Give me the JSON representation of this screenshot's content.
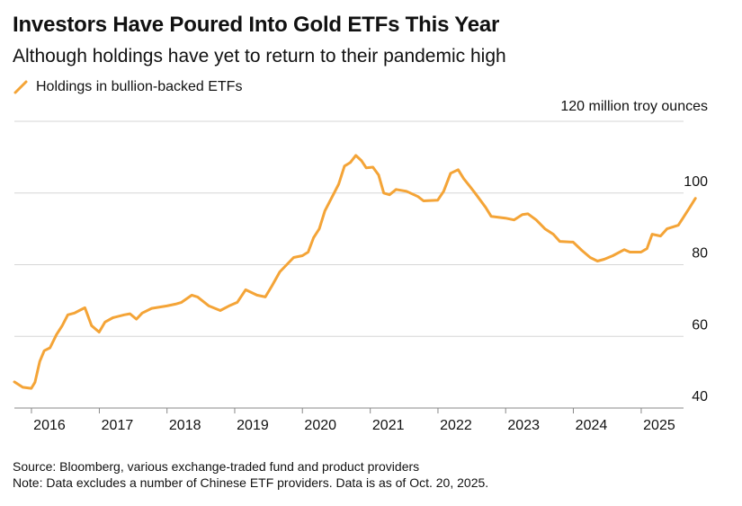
{
  "header": {
    "title": "Investors Have Poured Into Gold ETFs This Year",
    "subtitle": "Although holdings have yet to return to their pandemic high"
  },
  "legend": {
    "label": "Holdings in bullion-backed ETFs",
    "color": "#f4a437"
  },
  "footer": {
    "source": "Source: Bloomberg, various exchange-traded fund and product providers",
    "note": "Note: Data excludes a number of Chinese ETF providers. Data is as of Oct. 20, 2025."
  },
  "chart_data": {
    "type": "line",
    "title": "Investors Have Poured Into Gold ETFs This Year",
    "subtitle": "Although holdings have yet to return to their pandemic high",
    "xlabel": "",
    "ylabel": "",
    "unit_label": "120 million troy ounces",
    "xlim": [
      "2015-10-01",
      "2025-12-31"
    ],
    "ylim": [
      40,
      120
    ],
    "x_ticks": [
      {
        "label": "2016",
        "date": "2016-01-01"
      },
      {
        "label": "2017",
        "date": "2017-01-01"
      },
      {
        "label": "2018",
        "date": "2018-01-01"
      },
      {
        "label": "2019",
        "date": "2019-01-01"
      },
      {
        "label": "2020",
        "date": "2020-01-01"
      },
      {
        "label": "2021",
        "date": "2021-01-01"
      },
      {
        "label": "2022",
        "date": "2022-01-01"
      },
      {
        "label": "2023",
        "date": "2023-01-01"
      },
      {
        "label": "2024",
        "date": "2024-01-01"
      },
      {
        "label": "2025",
        "date": "2025-01-01"
      }
    ],
    "y_ticks": [
      {
        "value": 40,
        "label": "40"
      },
      {
        "value": 60,
        "label": "60"
      },
      {
        "value": 80,
        "label": "80"
      },
      {
        "value": 100,
        "label": "100"
      },
      {
        "value": 120,
        "label": "120 million troy ounces"
      }
    ],
    "grid": "horizontal",
    "legend_position": "top-left",
    "color": "#f4a437",
    "series": [
      {
        "name": "Holdings in bullion-backed ETFs",
        "points": [
          [
            "2015-10-01",
            47.3
          ],
          [
            "2015-11-15",
            45.8
          ],
          [
            "2015-12-31",
            45.5
          ],
          [
            "2016-01-20",
            47.2
          ],
          [
            "2016-02-15",
            53.0
          ],
          [
            "2016-03-10",
            56.0
          ],
          [
            "2016-04-10",
            56.8
          ],
          [
            "2016-05-15",
            60.5
          ],
          [
            "2016-06-15",
            63.0
          ],
          [
            "2016-07-15",
            66.0
          ],
          [
            "2016-08-20",
            66.5
          ],
          [
            "2016-09-15",
            67.2
          ],
          [
            "2016-10-15",
            68.0
          ],
          [
            "2016-11-20",
            63.0
          ],
          [
            "2016-12-31",
            61.2
          ],
          [
            "2017-02-01",
            64.0
          ],
          [
            "2017-03-15",
            65.2
          ],
          [
            "2017-05-15",
            66.0
          ],
          [
            "2017-06-15",
            66.3
          ],
          [
            "2017-07-20",
            64.8
          ],
          [
            "2017-08-20",
            66.5
          ],
          [
            "2017-10-10",
            67.8
          ],
          [
            "2017-12-31",
            68.5
          ],
          [
            "2018-02-15",
            69.0
          ],
          [
            "2018-03-20",
            69.5
          ],
          [
            "2018-05-15",
            71.5
          ],
          [
            "2018-06-15",
            71.0
          ],
          [
            "2018-08-15",
            68.5
          ],
          [
            "2018-10-15",
            67.2
          ],
          [
            "2018-12-01",
            68.5
          ],
          [
            "2019-01-15",
            69.5
          ],
          [
            "2019-03-01",
            73.0
          ],
          [
            "2019-05-01",
            71.5
          ],
          [
            "2019-06-15",
            71.0
          ],
          [
            "2019-07-20",
            74.0
          ],
          [
            "2019-09-01",
            78.0
          ],
          [
            "2019-11-15",
            82.0
          ],
          [
            "2020-01-01",
            82.5
          ],
          [
            "2020-02-01",
            83.5
          ],
          [
            "2020-03-01",
            87.5
          ],
          [
            "2020-04-01",
            90.0
          ],
          [
            "2020-05-01",
            95.0
          ],
          [
            "2020-06-15",
            99.5
          ],
          [
            "2020-07-15",
            102.5
          ],
          [
            "2020-08-15",
            107.5
          ],
          [
            "2020-09-15",
            108.5
          ],
          [
            "2020-10-15",
            110.5
          ],
          [
            "2020-11-15",
            109.0
          ],
          [
            "2020-12-10",
            107.0
          ],
          [
            "2021-01-15",
            107.2
          ],
          [
            "2021-02-15",
            105.0
          ],
          [
            "2021-03-15",
            100.0
          ],
          [
            "2021-04-15",
            99.5
          ],
          [
            "2021-05-20",
            101.0
          ],
          [
            "2021-07-15",
            100.5
          ],
          [
            "2021-09-15",
            99.0
          ],
          [
            "2021-10-15",
            97.8
          ],
          [
            "2021-12-31",
            98.0
          ],
          [
            "2022-02-01",
            100.5
          ],
          [
            "2022-03-10",
            105.5
          ],
          [
            "2022-04-20",
            106.5
          ],
          [
            "2022-05-20",
            104.0
          ],
          [
            "2022-06-20",
            102.0
          ],
          [
            "2022-07-20",
            100.0
          ],
          [
            "2022-09-15",
            96.0
          ],
          [
            "2022-10-15",
            93.5
          ],
          [
            "2022-12-31",
            93.0
          ],
          [
            "2023-02-15",
            92.5
          ],
          [
            "2023-04-01",
            94.0
          ],
          [
            "2023-05-01",
            94.2
          ],
          [
            "2023-06-15",
            92.5
          ],
          [
            "2023-08-01",
            90.0
          ],
          [
            "2023-09-15",
            88.5
          ],
          [
            "2023-10-20",
            86.5
          ],
          [
            "2023-12-31",
            86.3
          ],
          [
            "2024-02-15",
            84.0
          ],
          [
            "2024-04-01",
            82.0
          ],
          [
            "2024-05-10",
            81.0
          ],
          [
            "2024-06-15",
            81.5
          ],
          [
            "2024-08-01",
            82.5
          ],
          [
            "2024-10-01",
            84.2
          ],
          [
            "2024-11-01",
            83.5
          ],
          [
            "2024-12-31",
            83.5
          ],
          [
            "2025-02-01",
            84.5
          ],
          [
            "2025-03-01",
            88.5
          ],
          [
            "2025-04-15",
            88.0
          ],
          [
            "2025-05-20",
            90.0
          ],
          [
            "2025-06-20",
            90.5
          ],
          [
            "2025-07-20",
            91.0
          ],
          [
            "2025-08-20",
            93.5
          ],
          [
            "2025-09-20",
            96.0
          ],
          [
            "2025-10-20",
            98.5
          ]
        ]
      }
    ]
  },
  "source": "Source: Bloomberg, various exchange-traded fund and product providers",
  "note": "Note: Data excludes a number of Chinese ETF providers. Data is as of Oct. 20, 2025."
}
